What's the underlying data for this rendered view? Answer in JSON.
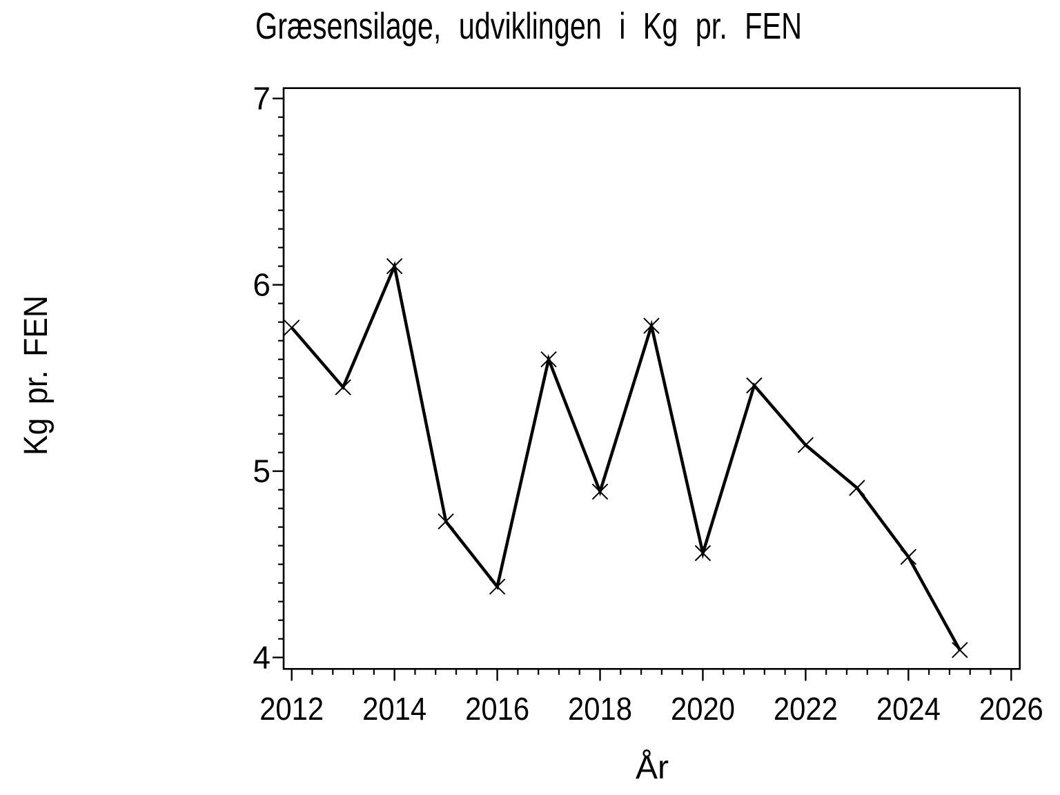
{
  "page": {
    "background_color": "#ffffff",
    "foreground_color": "#000000"
  },
  "chart_data": {
    "type": "line",
    "title": "Græsensilage, udviklingen i Kg pr. FEN",
    "xlabel": "År",
    "ylabel": "Kg pr. FEN",
    "x": [
      2012,
      2013,
      2014,
      2015,
      2016,
      2017,
      2018,
      2019,
      2020,
      2021,
      2022,
      2023,
      2024,
      2025
    ],
    "series": [
      {
        "name": "Kg pr. FEN",
        "values": [
          5.77,
          5.45,
          6.1,
          4.73,
          4.38,
          5.6,
          4.89,
          5.78,
          4.56,
          5.46,
          5.14,
          4.91,
          4.54,
          4.04
        ]
      }
    ],
    "marker": "x",
    "line_color": "#000000",
    "marker_color": "#000000",
    "x_tick_labels": [
      "2012",
      "2014",
      "2016",
      "2018",
      "2020",
      "2022",
      "2024",
      "2026"
    ],
    "x_major_ticks": [
      2012,
      2014,
      2016,
      2018,
      2020,
      2022,
      2024,
      2026
    ],
    "x_minor_step": 0.4,
    "y_tick_labels": [
      "7",
      "6",
      "5",
      "4"
    ],
    "y_major_ticks": [
      4,
      5,
      6,
      7
    ],
    "y_minor_step": 0.1,
    "xlim": [
      2011.84,
      2026.17
    ],
    "ylim": [
      3.94,
      7.06
    ],
    "grid": false,
    "frame": true,
    "legend_position": "none"
  }
}
